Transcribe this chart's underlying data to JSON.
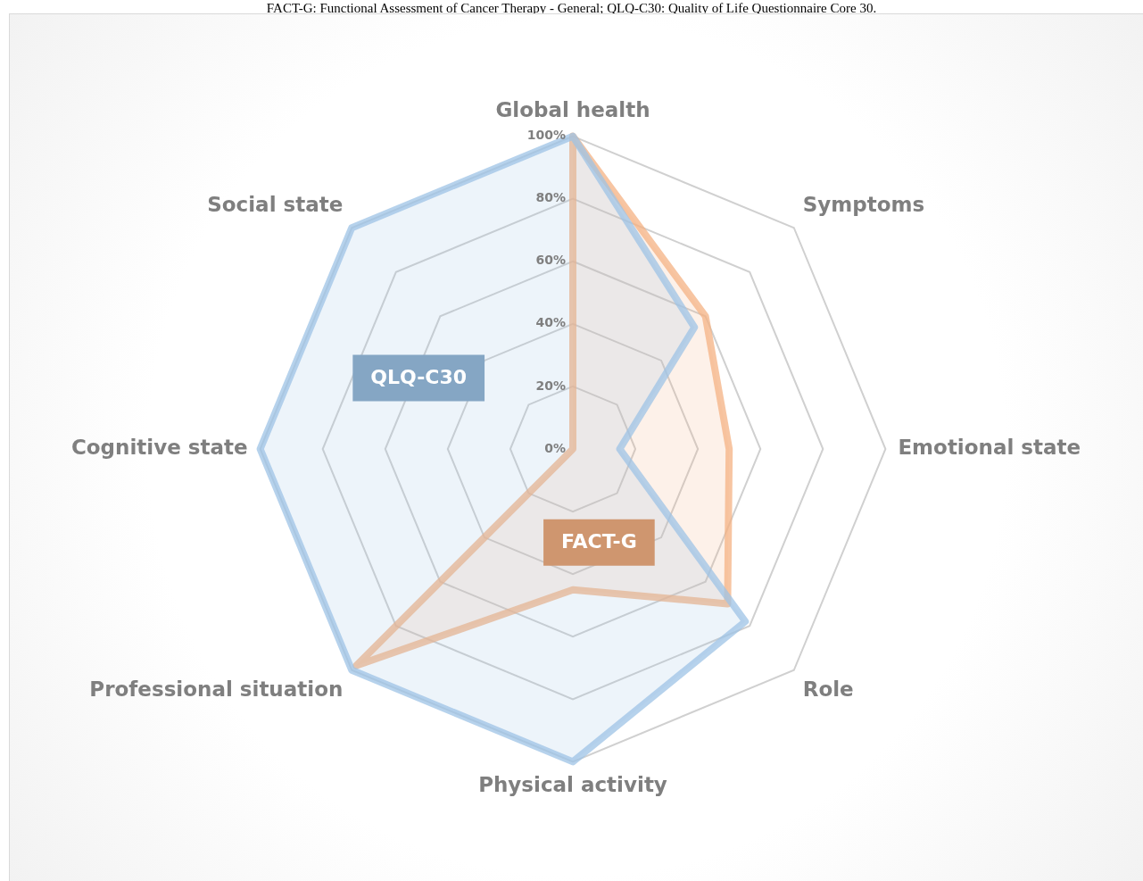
{
  "chart_data": {
    "type": "radar",
    "categories": [
      "Global health",
      "Symptoms",
      "Emotional state",
      "Role",
      "Physical activity",
      "Professional situation",
      "Cognitive state",
      "Social state"
    ],
    "series": [
      {
        "name": "QLQ-C30",
        "color": "#9dc3e6",
        "values": [
          100,
          55,
          15,
          78,
          100,
          100,
          100,
          100
        ]
      },
      {
        "name": "FACT-G",
        "color": "#f4b183",
        "values": [
          100,
          60,
          50,
          70,
          45,
          98,
          0,
          0
        ]
      }
    ],
    "ylim": [
      0,
      100
    ],
    "yticks": [
      {
        "value": 0,
        "label": "0%"
      },
      {
        "value": 20,
        "label": "20%"
      },
      {
        "value": 40,
        "label": "40%"
      },
      {
        "value": 60,
        "label": "60%"
      },
      {
        "value": 80,
        "label": "80%"
      },
      {
        "value": 100,
        "label": "100%"
      }
    ],
    "grid": true,
    "legend": false,
    "marker": "none",
    "annotations": [
      "FACT-G: Functional Assessment of Cancer Therapy - General; QLQ-C30: Quality of Life Questionnaire Core 30."
    ]
  }
}
